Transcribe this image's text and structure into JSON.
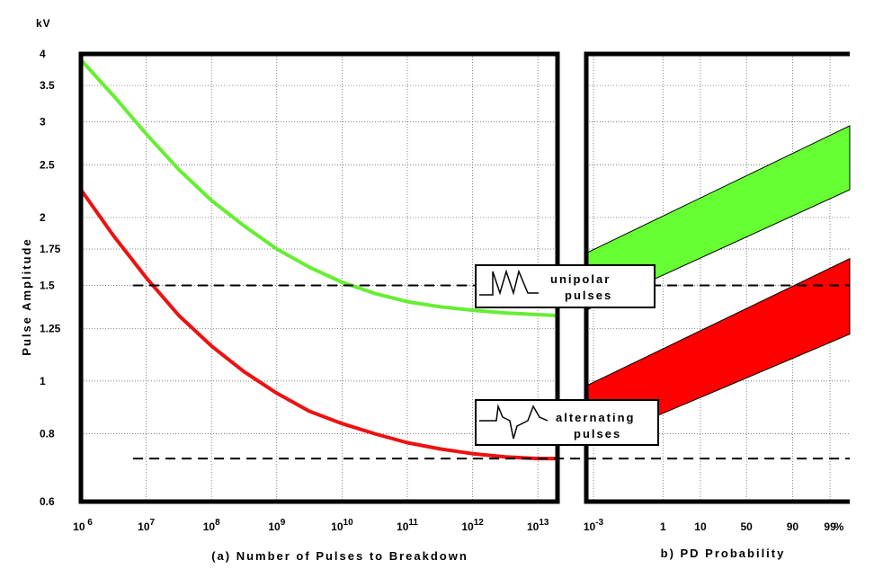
{
  "chart_data": [
    {
      "type": "line",
      "title": "",
      "xlabel": "(a) Number of Pulses to Breakdown",
      "ylabel": "Pulse Amplitude",
      "y_unit": "kV",
      "x_scale": "log",
      "y_scale": "log",
      "xlim_log10": [
        6,
        13.3
      ],
      "ylim": [
        0.6,
        4
      ],
      "x_tick_labels": [
        {
          "base": "10",
          "exp": " 6"
        },
        {
          "base": "10",
          "exp": "7"
        },
        {
          "base": "10",
          "exp": "8"
        },
        {
          "base": "10",
          "exp": "9"
        },
        {
          "base": "10",
          "exp": "10"
        },
        {
          "base": "10",
          "exp": "11"
        },
        {
          "base": "10",
          "exp": "12"
        },
        {
          "base": "10",
          "exp": "13"
        }
      ],
      "x_tick_values_log10": [
        6,
        7,
        8,
        9,
        10,
        11,
        12,
        13
      ],
      "y_tick_labels": [
        "4",
        "3.5",
        "3",
        "2.5",
        "2",
        "1.75",
        "1.5",
        "1.25",
        "1",
        "0.8",
        "0.6"
      ],
      "y_tick_values": [
        4,
        3.5,
        3,
        2.5,
        2,
        1.75,
        1.5,
        1.25,
        1,
        0.8,
        0.6
      ],
      "grid": true,
      "series": [
        {
          "color": "#66ee33",
          "x_log10": [
            6.0,
            6.5,
            7.0,
            7.5,
            8.0,
            8.5,
            9.0,
            9.5,
            10.0,
            10.5,
            11.0,
            11.5,
            12.0,
            12.5,
            13.0,
            13.3
          ],
          "y": [
            3.9,
            3.35,
            2.85,
            2.45,
            2.15,
            1.93,
            1.75,
            1.62,
            1.52,
            1.45,
            1.4,
            1.37,
            1.35,
            1.335,
            1.325,
            1.32
          ]
        },
        {
          "color": "#ee1111",
          "x_log10": [
            6.0,
            6.5,
            7.0,
            7.5,
            8.0,
            8.5,
            9.0,
            9.5,
            10.0,
            10.5,
            11.0,
            11.5,
            12.0,
            12.5,
            13.0,
            13.3
          ],
          "y": [
            2.25,
            1.85,
            1.55,
            1.32,
            1.16,
            1.04,
            0.95,
            0.88,
            0.835,
            0.8,
            0.77,
            0.75,
            0.735,
            0.725,
            0.72,
            0.72
          ]
        }
      ],
      "reference_lines_y": [
        1.5,
        0.72
      ]
    },
    {
      "type": "area",
      "title": "",
      "xlabel": "b) PD Probability",
      "x_scale": "probability",
      "x_tick_labels": [
        "10",
        "1",
        "10",
        "50",
        "90",
        "99",
        "%"
      ],
      "x_tick_sup": "-3",
      "x_tick_values_percent": [
        0.001,
        1,
        10,
        50,
        90,
        99
      ],
      "grid": true,
      "bands": [
        {
          "name": "unipolar pulses",
          "color": "#66ff33",
          "upper_y": [
            1.72,
            2.95
          ],
          "lower_y": [
            1.35,
            2.25
          ]
        },
        {
          "name": "alternating pulses",
          "color": "#ff0000",
          "upper_y": [
            0.98,
            1.68
          ],
          "lower_y": [
            0.76,
            1.22
          ]
        }
      ],
      "reference_lines_y": [
        1.5,
        0.72
      ]
    }
  ],
  "legend_boxes": [
    {
      "line1": "unipolar",
      "line2": "pulses",
      "icon": "unipolar-pulse-icon"
    },
    {
      "line1": "alternating",
      "line2": "pulses",
      "icon": "alternating-pulse-icon"
    }
  ]
}
